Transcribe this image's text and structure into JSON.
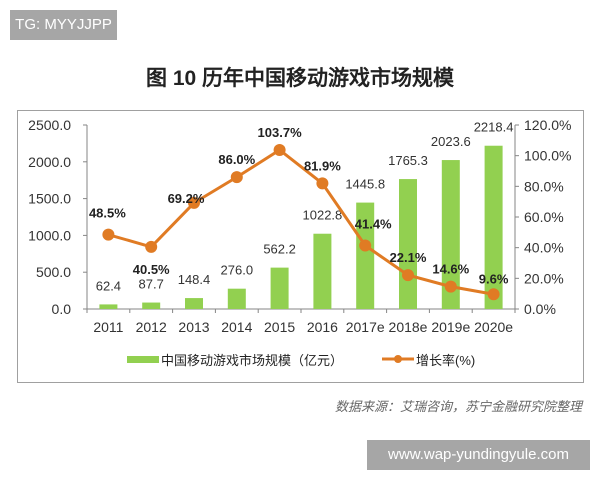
{
  "watermark_top": "TG: MYYJJPP",
  "watermark_bottom": "www.wap-yundingyule.com",
  "source": "数据来源：艾瑞咨询，苏宁金融研究院整理",
  "chart_data": {
    "type": "bar",
    "title": "图 10 历年中国移动游戏市场规模",
    "categories": [
      "2011",
      "2012",
      "2013",
      "2014",
      "2015",
      "2016",
      "2017e",
      "2018e",
      "2019e",
      "2020e"
    ],
    "series": [
      {
        "name": "中国移动游戏市场规模（亿元）",
        "type": "bar",
        "axis": "left",
        "color": "#92d050",
        "values": [
          62.4,
          87.7,
          148.4,
          276.0,
          562.2,
          1022.8,
          1445.8,
          1765.3,
          2023.6,
          2218.4
        ],
        "labels": [
          "62.4",
          "87.7",
          "148.4",
          "276.0",
          "562.2",
          "1022.8",
          "1445.8",
          "1765.3",
          "2023.6",
          "2218.4"
        ]
      },
      {
        "name": "增长率(%)",
        "type": "line",
        "axis": "right",
        "color": "#e07b24",
        "values": [
          48.5,
          40.5,
          69.2,
          86.0,
          103.7,
          81.9,
          41.4,
          22.1,
          14.6,
          9.6
        ],
        "labels": [
          "48.5%",
          "40.5%",
          "69.2%",
          "86.0%",
          "103.7%",
          "81.9%",
          "41.4%",
          "22.1%",
          "14.6%",
          "9.6%"
        ]
      }
    ],
    "y_left": {
      "ylim": [
        0,
        2500
      ],
      "ticks": [
        "0.0",
        "500.0",
        "1000.0",
        "1500.0",
        "2000.0",
        "2500.0"
      ]
    },
    "y_right": {
      "ylim": [
        0,
        120
      ],
      "ticks": [
        "0.0%",
        "20.0%",
        "40.0%",
        "60.0%",
        "80.0%",
        "100.0%",
        "120.0%"
      ]
    },
    "grid": false,
    "legend": "bottom"
  }
}
